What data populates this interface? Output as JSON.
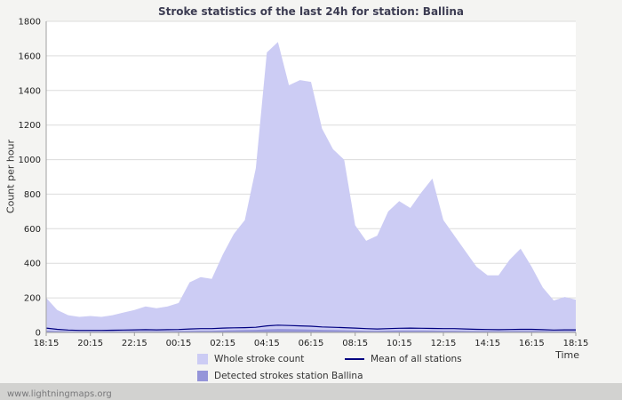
{
  "header": {
    "title": "Stroke statistics of the last 24h for station: Ballina"
  },
  "footer": {
    "site": "www.lightningmaps.org"
  },
  "colors": {
    "whole_area": "#ccccf4",
    "detected_area": "#9595d9",
    "mean_line": "#000080",
    "grid": "#dcdcdc",
    "axis": "#a0a0a0",
    "plot_bg": "#ffffff"
  },
  "chart_data": {
    "type": "area",
    "title": "Stroke statistics of the last 24h for station: Ballina",
    "xlabel": "Time",
    "ylabel": "Count per hour",
    "ylim": [
      0,
      1800
    ],
    "ytick_step": 200,
    "grid": "horizontal",
    "legend_position": "bottom",
    "x_tick_labels": [
      "18:15",
      "20:15",
      "22:15",
      "00:15",
      "02:15",
      "04:15",
      "06:15",
      "08:15",
      "10:15",
      "12:15",
      "14:15",
      "16:15",
      "18:15"
    ],
    "x_interval_minutes": 30,
    "series": [
      {
        "name": "Whole stroke count",
        "type": "area",
        "color": "#ccccf4",
        "values": [
          200,
          130,
          100,
          90,
          95,
          90,
          100,
          115,
          130,
          150,
          140,
          150,
          170,
          290,
          320,
          310,
          450,
          570,
          650,
          950,
          1620,
          1680,
          1430,
          1460,
          1450,
          1180,
          1060,
          1000,
          620,
          530,
          560,
          700,
          760,
          720,
          810,
          890,
          650,
          560,
          470,
          380,
          330,
          330,
          420,
          485,
          380,
          260,
          185,
          205,
          190
        ]
      },
      {
        "name": "Detected strokes station Ballina",
        "type": "area",
        "color": "#9595d9",
        "values": [
          10,
          8,
          6,
          5,
          5,
          5,
          6,
          6,
          7,
          7,
          7,
          7,
          8,
          9,
          10,
          10,
          12,
          13,
          14,
          15,
          18,
          20,
          19,
          18,
          17,
          15,
          14,
          13,
          12,
          10,
          10,
          11,
          12,
          12,
          12,
          11,
          10,
          10,
          9,
          8,
          8,
          8,
          8,
          9,
          9,
          8,
          7,
          7,
          7
        ]
      },
      {
        "name": "Mean of all stations",
        "type": "line",
        "color": "#000080",
        "values": [
          25,
          18,
          14,
          12,
          12,
          12,
          13,
          14,
          15,
          16,
          15,
          16,
          17,
          20,
          22,
          22,
          25,
          27,
          28,
          30,
          38,
          42,
          40,
          38,
          36,
          32,
          30,
          28,
          25,
          22,
          20,
          22,
          24,
          25,
          24,
          23,
          22,
          22,
          20,
          18,
          17,
          16,
          17,
          18,
          18,
          16,
          14,
          15,
          15
        ]
      }
    ],
    "legend": [
      "Whole stroke count",
      "Mean of all stations",
      "Detected strokes station Ballina"
    ]
  }
}
